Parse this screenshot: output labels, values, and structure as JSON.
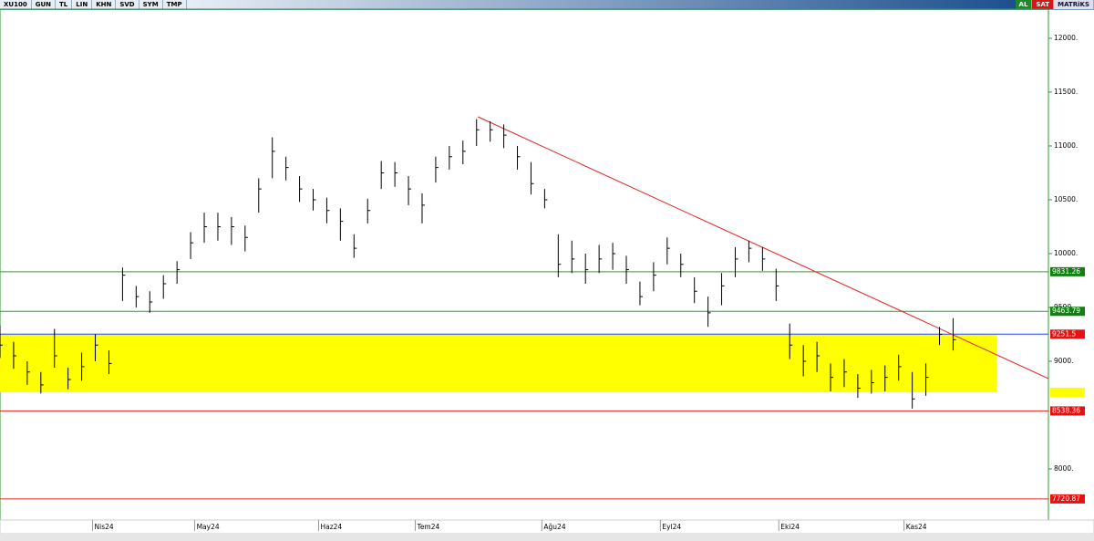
{
  "toolbar": {
    "symbol": "XU100",
    "items": [
      "GUN",
      "TL",
      "LIN",
      "KHN",
      "SVD",
      "SYM",
      "TMP"
    ],
    "buy": "AL",
    "sell": "SAT",
    "brand": "MATRiKS"
  },
  "chart_data": {
    "type": "ohlc",
    "x": [
      0,
      1,
      2,
      3,
      4,
      5,
      6,
      7,
      8,
      9,
      10,
      11,
      12,
      13,
      14,
      15,
      16,
      17,
      18,
      19,
      20,
      21,
      22,
      23,
      24,
      25,
      26,
      27,
      28,
      29,
      30,
      31,
      32,
      33,
      34,
      35,
      36,
      37,
      38,
      39,
      40,
      41,
      42,
      43,
      44,
      45,
      46,
      47,
      48,
      49,
      50,
      51,
      52,
      53,
      54,
      55,
      56,
      57,
      58,
      59,
      60,
      61,
      62,
      63,
      64,
      65,
      66,
      67,
      68,
      69,
      70
    ],
    "series": [
      {
        "name": "high",
        "values": [
          9330,
          9180,
          9000,
          8900,
          9300,
          8940,
          9080,
          9250,
          9100,
          9870,
          9700,
          9650,
          9800,
          9930,
          10200,
          10380,
          10380,
          10340,
          10260,
          10700,
          11080,
          10900,
          10720,
          10600,
          10520,
          10420,
          10180,
          10510,
          10860,
          10850,
          10720,
          10560,
          10900,
          11000,
          11050,
          11250,
          11230,
          11200,
          11000,
          10850,
          10600,
          10180,
          10120,
          10000,
          10080,
          10100,
          9980,
          9740,
          9920,
          10150,
          10000,
          9780,
          9600,
          9820,
          10060,
          10120,
          10060,
          9860,
          9350,
          9150,
          9180,
          8980,
          9020,
          8880,
          8920,
          8960,
          9060,
          8900,
          8980,
          9320,
          9400
        ]
      },
      {
        "name": "low",
        "values": [
          9030,
          8930,
          8780,
          8700,
          8940,
          8740,
          8820,
          9000,
          8880,
          9560,
          9500,
          9450,
          9580,
          9720,
          9950,
          10100,
          10120,
          10080,
          10020,
          10380,
          10700,
          10680,
          10480,
          10400,
          10280,
          10120,
          9960,
          10280,
          10600,
          10620,
          10450,
          10280,
          10660,
          10780,
          10830,
          11000,
          11040,
          10980,
          10780,
          10550,
          10420,
          9780,
          9820,
          9720,
          9820,
          9850,
          9720,
          9520,
          9650,
          9900,
          9780,
          9540,
          9320,
          9520,
          9780,
          9920,
          9840,
          9560,
          9020,
          8860,
          8900,
          8720,
          8760,
          8660,
          8700,
          8720,
          8820,
          8560,
          8680,
          9150,
          9100
        ]
      },
      {
        "name": "close",
        "values": [
          9150,
          9050,
          8900,
          8780,
          9050,
          8830,
          8950,
          9150,
          8980,
          9800,
          9600,
          9550,
          9720,
          9850,
          10100,
          10250,
          10250,
          10250,
          10150,
          10600,
          10950,
          10800,
          10600,
          10500,
          10400,
          10300,
          10050,
          10400,
          10750,
          10750,
          10600,
          10450,
          10800,
          10900,
          10950,
          11150,
          11150,
          11100,
          10900,
          10650,
          10500,
          9900,
          9950,
          9850,
          9950,
          10000,
          9850,
          9600,
          9800,
          10050,
          9900,
          9650,
          9450,
          9700,
          9950,
          10050,
          9950,
          9700,
          9150,
          9000,
          9050,
          8850,
          8900,
          8750,
          8800,
          8850,
          8950,
          8650,
          8850,
          9250,
          9200
        ]
      }
    ],
    "color": "#000000",
    "xlim": [
      0,
      77
    ],
    "xticks": [
      {
        "value": 6.8,
        "label": "Nis24"
      },
      {
        "value": 14.3,
        "label": "May24"
      },
      {
        "value": 23.4,
        "label": "Haz24"
      },
      {
        "value": 30.5,
        "label": "Tem24"
      },
      {
        "value": 39.8,
        "label": "Ağu24"
      },
      {
        "value": 48.5,
        "label": "Eyl24"
      },
      {
        "value": 57.2,
        "label": "Eki24"
      },
      {
        "value": 66.4,
        "label": "Kas24"
      }
    ],
    "ylim": [
      7525,
      12271
    ],
    "yticks": [
      {
        "value": 8000,
        "label": "8000."
      },
      {
        "value": 9000,
        "label": "9000."
      },
      {
        "value": 9500,
        "label": "9500."
      },
      {
        "value": 10000,
        "label": "10000."
      },
      {
        "value": 10500,
        "label": "10500."
      },
      {
        "value": 11000,
        "label": "11000."
      },
      {
        "value": 11500,
        "label": "11500."
      },
      {
        "value": 12000,
        "label": "12000."
      }
    ],
    "levels": [
      {
        "value": 9831.26,
        "color": "#2e9a2e",
        "label_color": "#108010"
      },
      {
        "value": 9463.79,
        "color": "#2e9a2e",
        "label_color": "#108010"
      },
      {
        "value": 9251.5,
        "color": "#2040ff",
        "label_color": "#e81010"
      },
      {
        "value": 8538.36,
        "color": "#e82020",
        "label_color": "#e81010"
      },
      {
        "value": 7720.87,
        "color": "#e82020",
        "label_color": "#e81010"
      }
    ],
    "zone": {
      "y": [
        8712,
        9251.5
      ],
      "x": [
        0,
        73.2
      ],
      "color": "#ffff00"
    },
    "trendline": {
      "x": [
        35.1,
        77
      ],
      "values": [
        11271,
        8839
      ],
      "color": "#e82020"
    }
  }
}
